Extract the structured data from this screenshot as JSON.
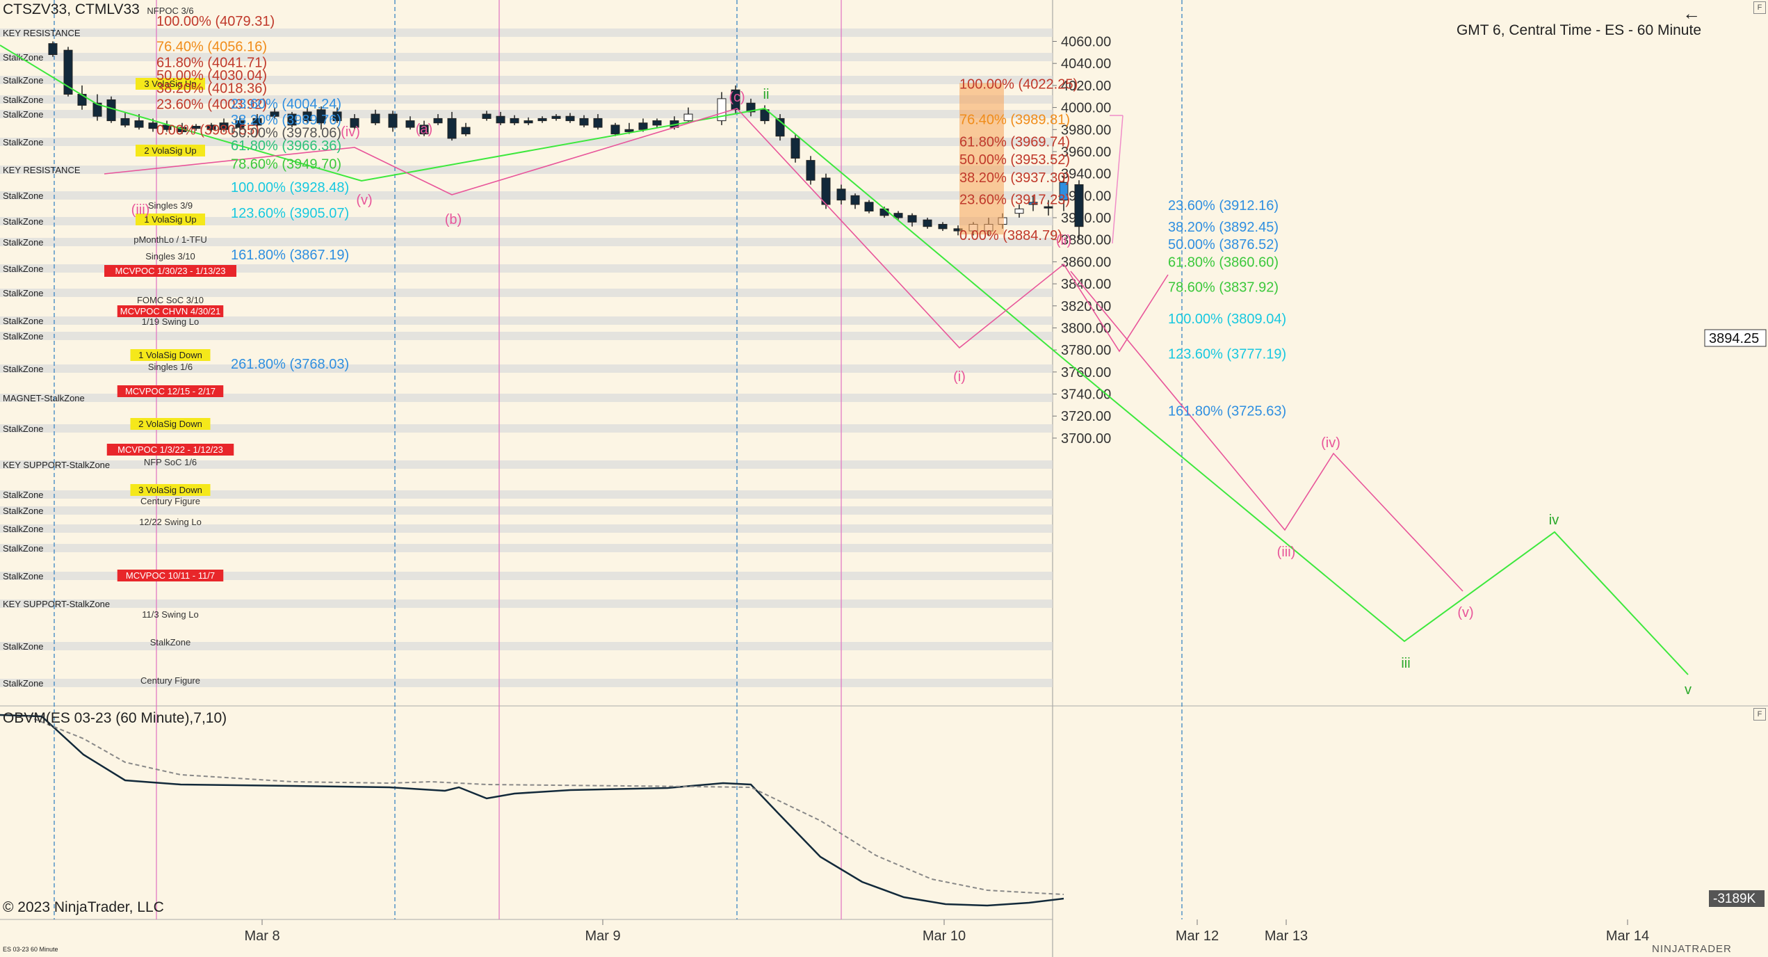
{
  "window": {
    "instrument_label": "CTSZV33, CTMLV33",
    "timezone_label": "GMT 6, Central Time - ES - 60 Minute",
    "copyright": "© 2023 NinjaTrader, LLC",
    "footer_small": "ES 03-23 60 Minute",
    "brand": "NINJATRADER",
    "back_icon": "arrow-left-icon"
  },
  "price_axis": {
    "ticks": [
      "4060.00",
      "4040.00",
      "4020.00",
      "4000.00",
      "3980.00",
      "3960.00",
      "3940.00",
      "3920.00",
      "3900.00",
      "3880.00",
      "3860.00",
      "3840.00",
      "3820.00",
      "3800.00",
      "3780.00",
      "3760.00",
      "3740.00",
      "3720.00",
      "3700.00"
    ],
    "current_price": "3894.25"
  },
  "obv_panel": {
    "title": "OBVM(ES 03-23 (60 Minute),7,10)",
    "value_badge": "-3189K"
  },
  "time_axis": [
    "Mar 8",
    "Mar 9",
    "Mar 10",
    "Mar 12",
    "Mar 13",
    "Mar 14"
  ],
  "zone_labels": [
    "KEY RESISTANCE",
    "StalkZone",
    "StalkZone",
    "StalkZone",
    "StalkZone",
    "StalkZone",
    "KEY RESISTANCE",
    "StalkZone",
    "StalkZone",
    "StalkZone",
    "StalkZone",
    "StalkZone",
    "StalkZone",
    "StalkZone",
    "StalkZone",
    "MAGNET-StalkZone",
    "StalkZone",
    "KEY SUPPORT-StalkZone",
    "StalkZone",
    "StalkZone",
    "StalkZone",
    "StalkZone",
    "StalkZone",
    "KEY SUPPORT-StalkZone",
    "StalkZone",
    "StalkZone"
  ],
  "tags": [
    "NFPOC 3/6",
    "3 VolaSig Up",
    "2 VolaSig Up",
    "Singles 3/9",
    "1 VolaSig Up",
    "pMonthLo / 1-TFU",
    "Singles 3/10",
    "MCVPOC 1/30/23 - 1/13/23",
    "FOMC SoC 3/10",
    "MCVPOC CHVN 4/30/21",
    "1/19 Swing Lo",
    "1 VolaSig Down",
    "Singles 1/6",
    "MCVPOC 12/15 - 2/17",
    "2 VolaSig Down",
    "MCVPOC 1/3/22 - 1/12/23",
    "NFP SoC 1/6",
    "3 VolaSig Down",
    "Century Figure",
    "12/22 Swing Lo",
    "MCVPOC 10/11 - 11/7",
    "11/3 Swing Lo",
    "StalkZone",
    "Century Figure"
  ],
  "fib_left": [
    "100.00% (4079.31)",
    "76.40% (4056.16)",
    "61.80% (4041.71)",
    "50.00% (4030.04)",
    "38.20% (4018.36)",
    "23.60% (4003.92)",
    "0.00% (3980.55)",
    "23.60% (4004.24)",
    "38.20% (3989.76)",
    "50.00% (3978.06)",
    "61.80% (3966.36)",
    "78.60% (3949.70)",
    "100.00% (3928.48)",
    "123.60% (3905.07)",
    "161.80% (3867.19)",
    "261.80% (3768.03)"
  ],
  "fib_mid": [
    "100.00% (4022.25)",
    "76.40% (3989.81)",
    "61.80% (3969.74)",
    "50.00% (3953.52)",
    "38.20% (3937.30)",
    "23.60% (3917.23)",
    "0.00% (3884.79)"
  ],
  "fib_right": [
    "23.60% (3912.16)",
    "38.20% (3892.45)",
    "50.00% (3876.52)",
    "61.80% (3860.60)",
    "78.60% (3837.92)",
    "100.00% (3809.04)",
    "123.60% (3777.19)",
    "161.80% (3725.63)"
  ],
  "wave_labels": [
    "(iv)",
    "(a)",
    "(v)",
    "(b)",
    "(iii)",
    "(c)",
    "ii",
    "(ii)",
    "(i)",
    "(iv)",
    "(iii)",
    "(v)",
    "iv",
    "iii",
    "v"
  ],
  "colors": {
    "background": "#fcf5e4",
    "zone_band": "#dcdcdc",
    "bull_green": "#3de83d",
    "pink_wave": "#e8559a",
    "fib_orange": "#f08c1a",
    "fib_red": "#c0392b",
    "fib_blue": "#2f8fe0",
    "fib_cyan": "#18c8e0",
    "candle_dark": "#12293a"
  }
}
